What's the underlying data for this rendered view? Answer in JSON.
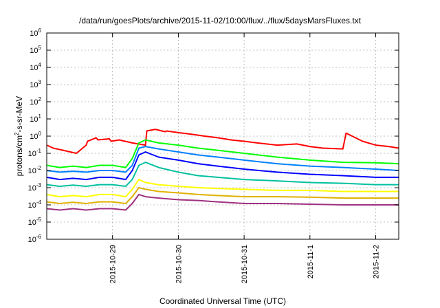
{
  "chart_data": {
    "type": "line",
    "title": "/data/run/goesPlots/archive/2015-11-02/10:00/flux/../flux/5daysMarsFluxes.txt",
    "xlabel": "Coordinated Universal Time (UTC)",
    "ylabel": {
      "prefix": "protons/cm",
      "sup": "2",
      "suffix": "-s-sr-MeV"
    },
    "xlim": [
      0,
      5.35
    ],
    "ylim": [
      1e-06,
      1000000.0
    ],
    "y_scale": "log",
    "grid": true,
    "x_ticks": [
      {
        "x": 1,
        "label": "2015-10-29"
      },
      {
        "x": 2,
        "label": "2015-10-30"
      },
      {
        "x": 3,
        "label": "2015-10-31"
      },
      {
        "x": 4,
        "label": "2015-11-1"
      },
      {
        "x": 5,
        "label": "2015-11-2"
      }
    ],
    "y_ticks": [
      {
        "value": 1e-06,
        "base": "10",
        "exp": "-6"
      },
      {
        "value": 1e-05,
        "base": "10",
        "exp": "-5"
      },
      {
        "value": 0.0001,
        "base": "10",
        "exp": "-4"
      },
      {
        "value": 0.001,
        "base": "10",
        "exp": "-3"
      },
      {
        "value": 0.01,
        "base": "10",
        "exp": "-2"
      },
      {
        "value": 0.1,
        "base": "10",
        "exp": "-1"
      },
      {
        "value": 1,
        "base": "10",
        "exp": "0"
      },
      {
        "value": 10.0,
        "base": "10",
        "exp": "1"
      },
      {
        "value": 100.0,
        "base": "10",
        "exp": "2"
      },
      {
        "value": 1000.0,
        "base": "10",
        "exp": "3"
      },
      {
        "value": 10000.0,
        "base": "10",
        "exp": "4"
      },
      {
        "value": 100000.0,
        "base": "10",
        "exp": "5"
      },
      {
        "value": 1000000.0,
        "base": "10",
        "exp": "6"
      }
    ],
    "series": [
      {
        "color": "#ff0000",
        "x": [
          0,
          0.1,
          0.25,
          0.45,
          0.6,
          0.62,
          0.75,
          0.78,
          0.95,
          0.98,
          1.1,
          1.3,
          1.5,
          1.52,
          1.65,
          1.8,
          1.82,
          2.0,
          2.2,
          2.4,
          2.6,
          2.8,
          3.0,
          3.2,
          3.5,
          3.8,
          4.0,
          4.2,
          4.5,
          4.55,
          4.6,
          4.8,
          5.0,
          5.2,
          5.35
        ],
        "y": [
          0.3,
          0.2,
          0.15,
          0.1,
          0.3,
          0.5,
          0.8,
          0.6,
          0.7,
          0.5,
          0.6,
          0.4,
          0.3,
          2.0,
          2.5,
          1.8,
          2.0,
          1.6,
          1.3,
          1.0,
          0.8,
          0.6,
          0.5,
          0.4,
          0.3,
          0.35,
          0.25,
          0.2,
          0.18,
          1.5,
          1.2,
          0.5,
          0.3,
          0.25,
          0.2
        ]
      },
      {
        "color": "#00ff00",
        "x": [
          0,
          0.2,
          0.4,
          0.6,
          0.8,
          1.0,
          1.2,
          1.3,
          1.4,
          1.5,
          1.7,
          2.0,
          2.3,
          2.6,
          3.0,
          3.5,
          4.0,
          4.5,
          5.0,
          5.35
        ],
        "y": [
          0.02,
          0.015,
          0.018,
          0.015,
          0.02,
          0.02,
          0.015,
          0.05,
          0.4,
          0.6,
          0.4,
          0.3,
          0.2,
          0.15,
          0.1,
          0.06,
          0.04,
          0.03,
          0.028,
          0.025
        ]
      },
      {
        "color": "#0080ff",
        "x": [
          0,
          0.2,
          0.4,
          0.6,
          0.8,
          1.0,
          1.2,
          1.3,
          1.4,
          1.5,
          1.7,
          2.0,
          2.3,
          2.6,
          3.0,
          3.5,
          4.0,
          4.5,
          5.0,
          5.35
        ],
        "y": [
          0.01,
          0.008,
          0.009,
          0.008,
          0.01,
          0.01,
          0.008,
          0.02,
          0.2,
          0.25,
          0.18,
          0.12,
          0.08,
          0.06,
          0.04,
          0.025,
          0.018,
          0.015,
          0.012,
          0.01
        ]
      },
      {
        "color": "#0000ff",
        "x": [
          0,
          0.2,
          0.4,
          0.6,
          0.8,
          1.0,
          1.2,
          1.3,
          1.4,
          1.5,
          1.7,
          2.0,
          2.3,
          2.6,
          3.0,
          3.5,
          4.0,
          4.5,
          5.0,
          5.35
        ],
        "y": [
          0.004,
          0.003,
          0.0035,
          0.003,
          0.004,
          0.004,
          0.003,
          0.01,
          0.08,
          0.12,
          0.06,
          0.04,
          0.025,
          0.018,
          0.012,
          0.008,
          0.006,
          0.005,
          0.004,
          0.004
        ]
      },
      {
        "color": "#00c0a0",
        "x": [
          0,
          0.2,
          0.4,
          0.6,
          0.8,
          1.0,
          1.2,
          1.3,
          1.4,
          1.5,
          1.7,
          2.0,
          2.3,
          2.6,
          3.0,
          3.5,
          4.0,
          4.5,
          5.0,
          5.35
        ],
        "y": [
          0.0015,
          0.0012,
          0.0014,
          0.0012,
          0.0015,
          0.0015,
          0.0012,
          0.003,
          0.02,
          0.03,
          0.015,
          0.008,
          0.005,
          0.004,
          0.003,
          0.0025,
          0.002,
          0.0018,
          0.0015,
          0.0015
        ]
      },
      {
        "color": "#ffff00",
        "x": [
          0,
          0.2,
          0.4,
          0.6,
          0.8,
          1.0,
          1.2,
          1.3,
          1.4,
          1.5,
          1.7,
          2.0,
          2.3,
          2.6,
          3.0,
          3.5,
          4.0,
          4.5,
          5.0,
          5.35
        ],
        "y": [
          0.0004,
          0.0003,
          0.00035,
          0.0003,
          0.0004,
          0.0004,
          0.0003,
          0.0008,
          0.003,
          0.002,
          0.0015,
          0.0012,
          0.001,
          0.0009,
          0.0008,
          0.0007,
          0.0007,
          0.0006,
          0.0006,
          0.0006
        ]
      },
      {
        "color": "#e0b000",
        "x": [
          0,
          0.2,
          0.4,
          0.6,
          0.8,
          1.0,
          1.2,
          1.3,
          1.4,
          1.5,
          1.7,
          2.0,
          2.3,
          2.6,
          3.0,
          3.5,
          4.0,
          4.5,
          5.0,
          5.35
        ],
        "y": [
          0.00015,
          0.00012,
          0.00014,
          0.00012,
          0.00015,
          0.00015,
          0.00012,
          0.0003,
          0.001,
          0.0008,
          0.0006,
          0.0005,
          0.0004,
          0.00035,
          0.0003,
          0.0003,
          0.00028,
          0.00025,
          0.00025,
          0.00025
        ]
      },
      {
        "color": "#a03080",
        "x": [
          0,
          0.2,
          0.4,
          0.6,
          0.8,
          1.0,
          1.2,
          1.3,
          1.4,
          1.5,
          1.7,
          2.0,
          2.3,
          2.6,
          3.0,
          3.5,
          4.0,
          4.5,
          5.0,
          5.35
        ],
        "y": [
          6e-05,
          5e-05,
          6e-05,
          5e-05,
          6e-05,
          6e-05,
          5e-05,
          0.00012,
          0.0004,
          0.0003,
          0.00025,
          0.0002,
          0.00018,
          0.00015,
          0.00012,
          0.00012,
          0.00011,
          0.0001,
          0.0001,
          0.0001
        ]
      }
    ]
  }
}
